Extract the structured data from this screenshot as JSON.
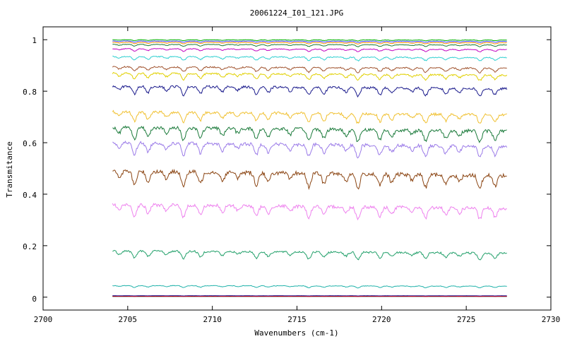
{
  "chart_data": {
    "type": "line",
    "title": "20061224_I01_121.JPG",
    "xlabel": "Wavenumbers (cm-1)",
    "ylabel": "Transmitance",
    "xlim": [
      2700,
      2730
    ],
    "ylim": [
      -0.05,
      1.05
    ],
    "xticks": [
      "2700",
      "2705",
      "2710",
      "2715",
      "2720",
      "2725",
      "2730"
    ],
    "yticks": [
      "0",
      "0.2",
      "0.4",
      "0.6",
      "0.8",
      "1"
    ],
    "grid": false,
    "legend": "none",
    "x_range_of_data": [
      2704.1,
      2727.4
    ],
    "absorption_lines": [
      2704.5,
      2705.4,
      2706.2,
      2707.3,
      2708.3,
      2709.3,
      2710.6,
      2711.5,
      2712.6,
      2713.3,
      2714.6,
      2715.7,
      2716.6,
      2717.9,
      2718.6,
      2719.9,
      2720.6,
      2721.8,
      2722.6,
      2723.8,
      2724.6,
      2725.8,
      2726.7
    ],
    "series": [
      {
        "color": "#000000",
        "baseline": 0.003,
        "depth": 0.0
      },
      {
        "color": "#ff0000",
        "baseline": 0.004,
        "depth": 0.001
      },
      {
        "color": "#2020a0",
        "baseline": 0.006,
        "depth": 0.001
      },
      {
        "color": "#20b2aa",
        "baseline": 0.045,
        "depth": 0.008
      },
      {
        "color": "#22a06a",
        "baseline": 0.18,
        "depth": 0.03
      },
      {
        "color": "#ee82ee",
        "baseline": 0.36,
        "depth": 0.05
      },
      {
        "color": "#8b4513",
        "baseline": 0.49,
        "depth": 0.06
      },
      {
        "color": "#9b7be8",
        "baseline": 0.6,
        "depth": 0.05
      },
      {
        "color": "#1a7a3a",
        "baseline": 0.66,
        "depth": 0.05
      },
      {
        "color": "#f0c030",
        "baseline": 0.72,
        "depth": 0.04
      },
      {
        "color": "#1a1a8c",
        "baseline": 0.82,
        "depth": 0.035
      },
      {
        "color": "#e0d000",
        "baseline": 0.87,
        "depth": 0.025
      },
      {
        "color": "#a0522d",
        "baseline": 0.895,
        "depth": 0.02
      },
      {
        "color": "#30d0d0",
        "baseline": 0.935,
        "depth": 0.015
      },
      {
        "color": "#c000c0",
        "baseline": 0.965,
        "depth": 0.01
      },
      {
        "color": "#1a7a3a",
        "baseline": 0.982,
        "depth": 0.008
      },
      {
        "color": "#ff8c00",
        "baseline": 0.99,
        "depth": 0.006
      },
      {
        "color": "#4040ff",
        "baseline": 0.995,
        "depth": 0.005
      },
      {
        "color": "#00b000",
        "baseline": 1.0,
        "depth": 0.004
      }
    ]
  }
}
